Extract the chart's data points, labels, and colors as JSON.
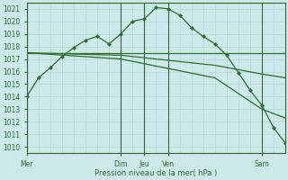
{
  "bg_color": "#cce8e8",
  "grid_color": "#b8d8d8",
  "line_color": "#2d6e2d",
  "ylabel": "Pression niveau de la mer( hPa )",
  "ylim": [
    1009.5,
    1021.5
  ],
  "yticks": [
    1010,
    1011,
    1012,
    1013,
    1014,
    1015,
    1016,
    1017,
    1018,
    1019,
    1020,
    1021
  ],
  "xlim": [
    0,
    132
  ],
  "x_minor_step": 6,
  "x_day_positions": [
    0,
    48,
    60,
    72,
    120
  ],
  "x_day_labels": [
    "Mer",
    "Dim",
    "Jeu",
    "Ven",
    "Sam"
  ],
  "lines": [
    {
      "x": [
        0,
        6,
        12,
        18,
        24,
        30,
        36,
        42,
        48,
        54,
        60,
        66,
        72,
        78,
        84,
        90,
        96,
        102,
        108,
        114,
        120,
        126,
        132
      ],
      "y": [
        1014.0,
        1015.5,
        1016.3,
        1017.2,
        1017.9,
        1018.5,
        1018.8,
        1018.2,
        1019.0,
        1020.0,
        1020.2,
        1021.1,
        1021.0,
        1020.5,
        1019.5,
        1018.8,
        1018.2,
        1017.3,
        1015.9,
        1014.5,
        1013.3,
        1011.5,
        1010.3
      ],
      "has_markers": true
    },
    {
      "x": [
        0,
        48,
        96,
        120,
        132
      ],
      "y": [
        1017.5,
        1017.5,
        1017.5,
        1017.5,
        1017.5
      ],
      "has_markers": false
    },
    {
      "x": [
        0,
        48,
        96,
        120,
        132
      ],
      "y": [
        1017.5,
        1017.3,
        1016.5,
        1015.8,
        1015.5
      ],
      "has_markers": false
    },
    {
      "x": [
        0,
        48,
        96,
        120,
        132
      ],
      "y": [
        1017.5,
        1017.0,
        1015.5,
        1013.0,
        1012.3
      ],
      "has_markers": false
    }
  ],
  "vlines": [
    0,
    48,
    60,
    72,
    120
  ],
  "vline_color": "#336633",
  "fig_width": 3.2,
  "fig_height": 2.0,
  "dpi": 100
}
